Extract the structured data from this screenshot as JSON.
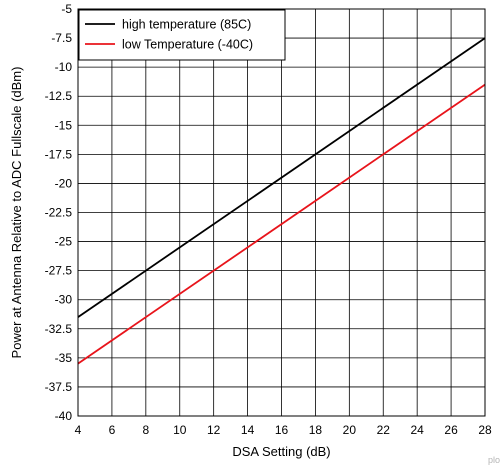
{
  "chart_data": {
    "type": "line",
    "title": "",
    "xlabel": "DSA Setting (dB)",
    "ylabel": "Power at Antenna Relative to ADC Fullscale (dBm)",
    "xlim": [
      4,
      28
    ],
    "ylim": [
      -40,
      -5
    ],
    "xticks": [
      4,
      6,
      8,
      10,
      12,
      14,
      16,
      18,
      20,
      22,
      24,
      26,
      28
    ],
    "yticks": [
      -40,
      -37.5,
      -35,
      -32.5,
      -30,
      -27.5,
      -25,
      -22.5,
      -20,
      -17.5,
      -15,
      -12.5,
      -10,
      -7.5,
      -5
    ],
    "grid": true,
    "legend_position": "top-left",
    "series": [
      {
        "name": "high temperature (85C)",
        "color": "#000000",
        "x": [
          4,
          28
        ],
        "y": [
          -31.5,
          -7.5
        ]
      },
      {
        "name": "low Temperature (-40C)",
        "color": "#e8141b",
        "x": [
          4,
          28
        ],
        "y": [
          -35.5,
          -11.5
        ]
      }
    ]
  },
  "watermark": "plo"
}
